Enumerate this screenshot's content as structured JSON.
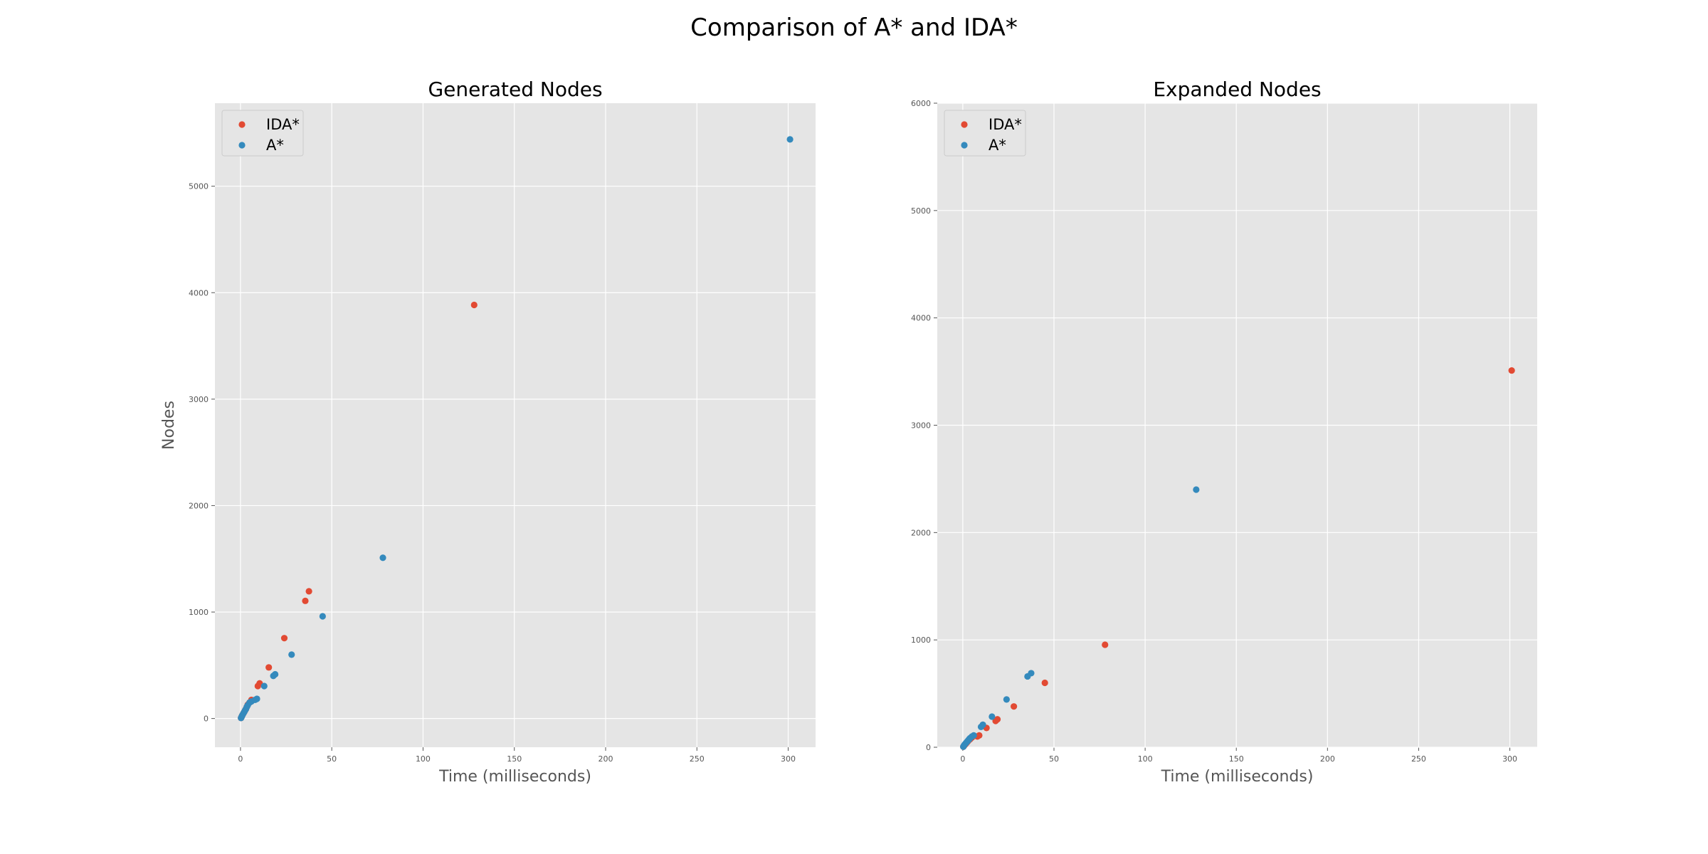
{
  "figure_title": "Comparison of A* and IDA*",
  "colors": {
    "IDA*": "#E24A33",
    "A*": "#348ABD",
    "axes_bg": "#E5E5E5",
    "grid": "#ffffff"
  },
  "chart_data": [
    {
      "type": "scatter",
      "title": "Generated Nodes",
      "xlabel": "Time (milliseconds)",
      "ylabel": "Nodes",
      "xlim": [
        -14,
        315
      ],
      "ylim": [
        -270,
        5780
      ],
      "xticks": [
        0,
        50,
        100,
        150,
        200,
        250,
        300
      ],
      "yticks": [
        0,
        1000,
        2000,
        3000,
        4000,
        5000
      ],
      "grid": true,
      "legend": "upper left",
      "series": [
        {
          "name": "IDA*",
          "x": [
            0.3,
            0.6,
            1.0,
            1.5,
            2.0,
            2.5,
            3.0,
            3.5,
            4.0,
            5.0,
            6.0,
            9.5,
            10.5,
            15.5,
            24.0,
            35.5,
            37.5,
            128.0
          ],
          "y": [
            5,
            15,
            30,
            45,
            60,
            75,
            90,
            110,
            130,
            150,
            175,
            305,
            330,
            480,
            755,
            1105,
            1195,
            3885
          ]
        },
        {
          "name": "A*",
          "x": [
            0.3,
            0.6,
            1.0,
            1.5,
            2.0,
            2.5,
            3.0,
            3.5,
            4.0,
            5.0,
            6.0,
            8.0,
            9.0,
            13.0,
            18.0,
            19.0,
            28.0,
            45.0,
            78.0,
            301.0
          ],
          "y": [
            5,
            15,
            30,
            45,
            60,
            75,
            90,
            110,
            125,
            150,
            160,
            175,
            185,
            305,
            400,
            415,
            600,
            960,
            1510,
            5440
          ]
        }
      ]
    },
    {
      "type": "scatter",
      "title": "Expanded Nodes",
      "xlabel": "Time (milliseconds)",
      "ylabel": "",
      "xlim": [
        -14,
        315
      ],
      "ylim": [
        0,
        6000
      ],
      "xticks": [
        0,
        50,
        100,
        150,
        200,
        250,
        300
      ],
      "yticks": [
        0,
        1000,
        2000,
        3000,
        4000,
        5000,
        6000
      ],
      "grid": true,
      "legend": "upper left",
      "series": [
        {
          "name": "IDA*",
          "x": [
            0.3,
            0.6,
            1.0,
            1.5,
            2.0,
            2.5,
            3.0,
            4.0,
            5.0,
            8.0,
            9.0,
            13.0,
            18.0,
            19.0,
            28.0,
            45.0,
            78.0,
            301.0
          ],
          "y": [
            5,
            12,
            20,
            30,
            40,
            50,
            60,
            75,
            90,
            100,
            110,
            180,
            245,
            260,
            380,
            600,
            955,
            3510
          ]
        },
        {
          "name": "A*",
          "x": [
            0.3,
            0.6,
            1.0,
            1.5,
            2.0,
            2.5,
            3.0,
            3.5,
            4.0,
            5.0,
            6.0,
            10.0,
            11.0,
            16.0,
            24.0,
            35.5,
            37.5,
            128.0
          ],
          "y": [
            5,
            15,
            25,
            35,
            45,
            55,
            65,
            75,
            85,
            100,
            110,
            190,
            210,
            285,
            445,
            660,
            690,
            2400
          ]
        }
      ]
    }
  ]
}
